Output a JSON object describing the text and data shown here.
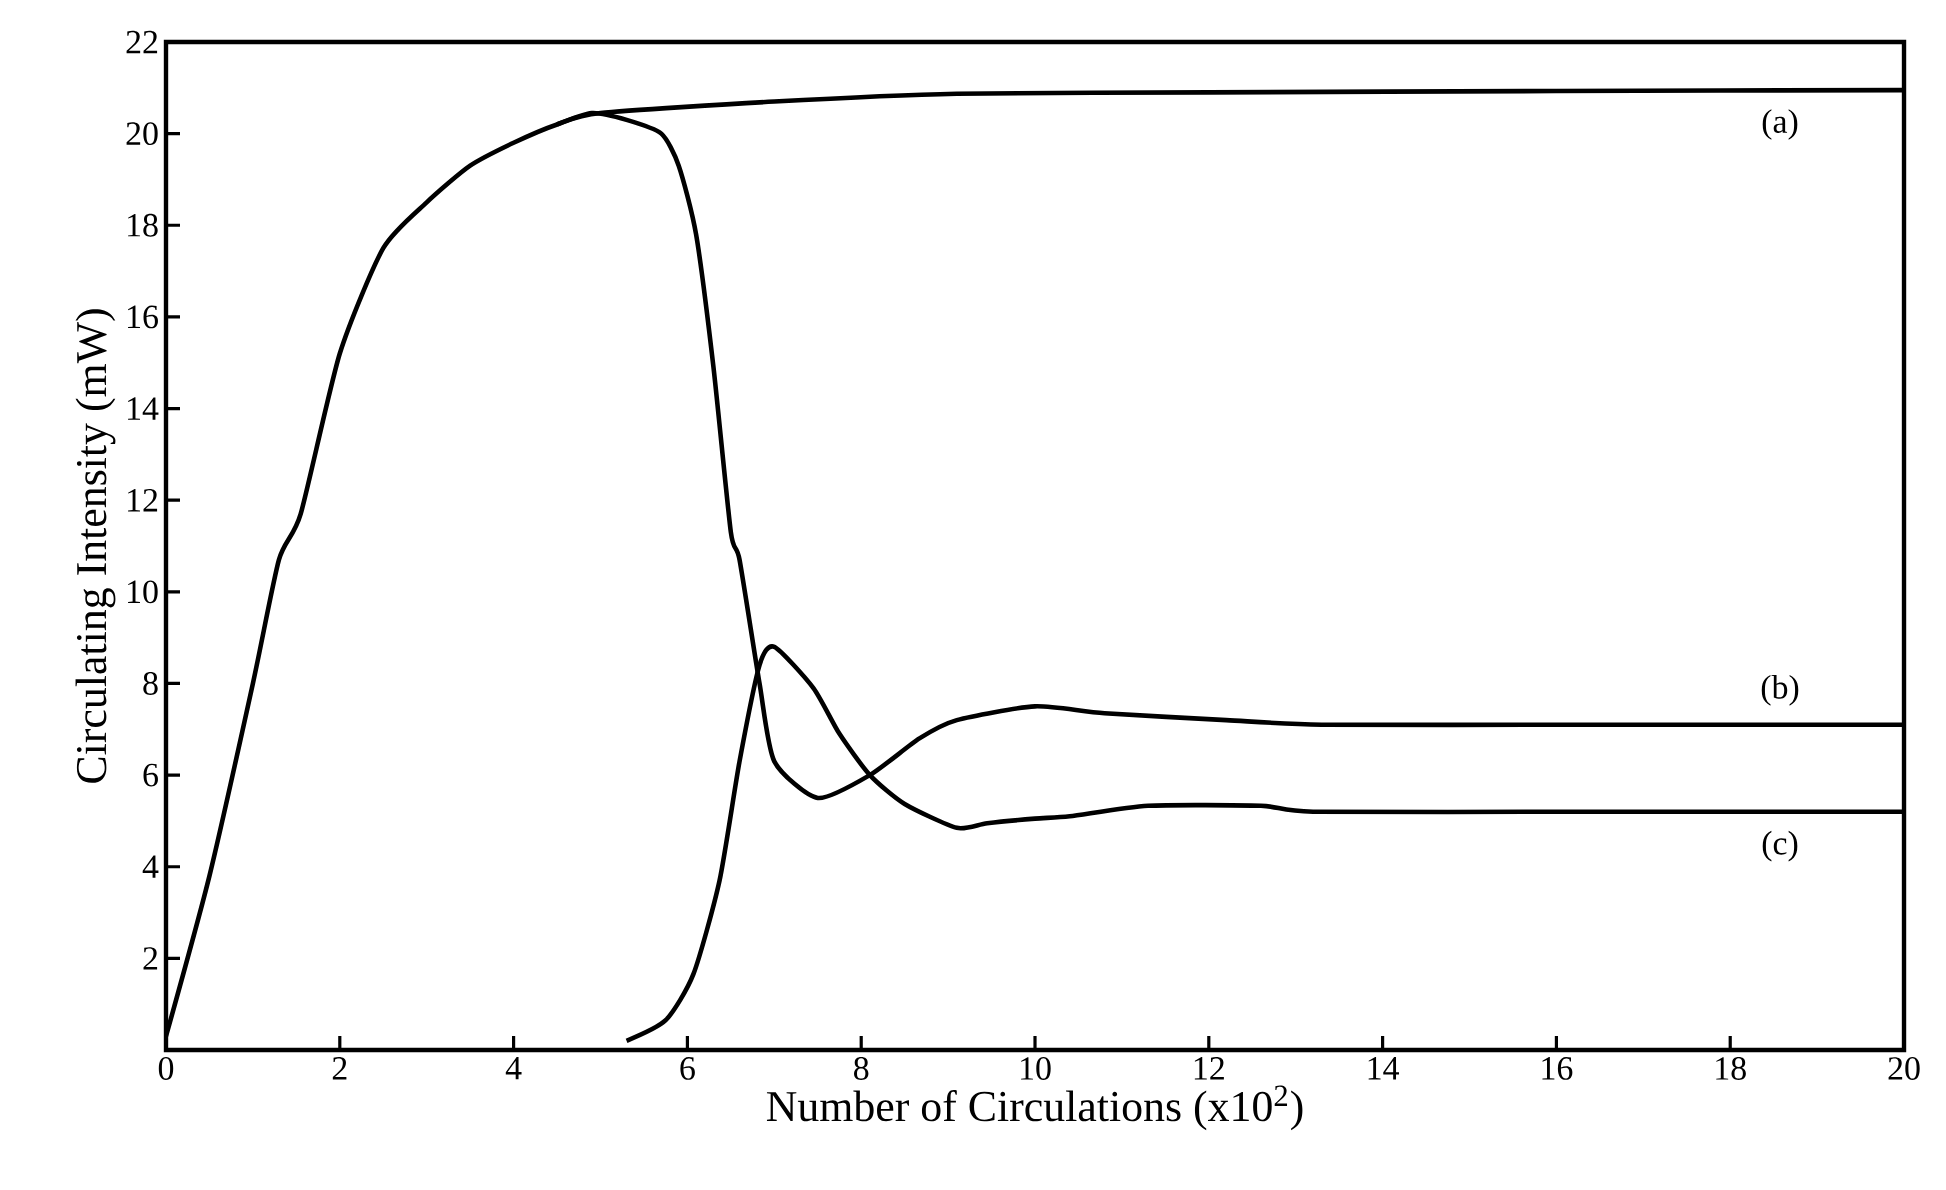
{
  "chart_data": {
    "type": "line",
    "xlabel": "Number of Circulations    (x10$^{2}$)",
    "ylabel": "Circulating Intensity  (mW)",
    "xlim": [
      0,
      20
    ],
    "ylim": [
      0,
      22
    ],
    "xticks": [
      0,
      2,
      4,
      6,
      8,
      10,
      12,
      14,
      16,
      18,
      20
    ],
    "yticks": [
      2,
      4,
      6,
      8,
      10,
      12,
      14,
      16,
      18,
      20,
      22
    ],
    "grid": false,
    "marker": "none",
    "line_style": "solid",
    "series": [
      {
        "name": "(a)",
        "color": "#000000",
        "x": [
          0,
          0.5,
          1,
          1.3,
          1.55,
          2,
          2.5,
          3,
          3.5,
          4,
          4.5,
          5,
          7,
          9.1,
          12,
          16,
          20
        ],
        "values": [
          0.3,
          3.8,
          8,
          10.7,
          11.7,
          15.2,
          17.5,
          18.5,
          19.3,
          19.8,
          20.2,
          20.45,
          20.7,
          20.87,
          20.9,
          20.93,
          20.95
        ]
      },
      {
        "name": "(b)",
        "color": "#000000",
        "x": [
          4.5,
          4.9,
          5.3,
          5.7,
          5.9,
          6.1,
          6.3,
          6.5,
          6.6,
          6.83,
          7.0,
          7.5,
          8.1,
          8.67,
          9.1,
          10.0,
          10.8,
          12.2,
          13.3,
          16,
          20
        ],
        "values": [
          20.2,
          20.45,
          20.3,
          20,
          19.3,
          17.8,
          14.9,
          11.3,
          10.7,
          8,
          6.3,
          5.5,
          6.0,
          6.8,
          7.2,
          7.5,
          7.35,
          7.2,
          7.1,
          7.1,
          7.1
        ]
      },
      {
        "name": "(c)",
        "color": "#000000",
        "x": [
          5.3,
          5.75,
          6.07,
          6.37,
          6.6,
          6.83,
          7.0,
          7.45,
          7.75,
          8.1,
          8.5,
          9.1,
          9.45,
          10.0,
          10.4,
          11.3,
          12.6,
          13.2,
          16,
          20
        ],
        "values": [
          0.2,
          0.65,
          1.66,
          3.7,
          6.3,
          8.4,
          8.8,
          7.9,
          6.9,
          6.0,
          5.37,
          4.85,
          4.95,
          5.05,
          5.1,
          5.33,
          5.33,
          5.2,
          5.2,
          5.2
        ]
      }
    ]
  }
}
